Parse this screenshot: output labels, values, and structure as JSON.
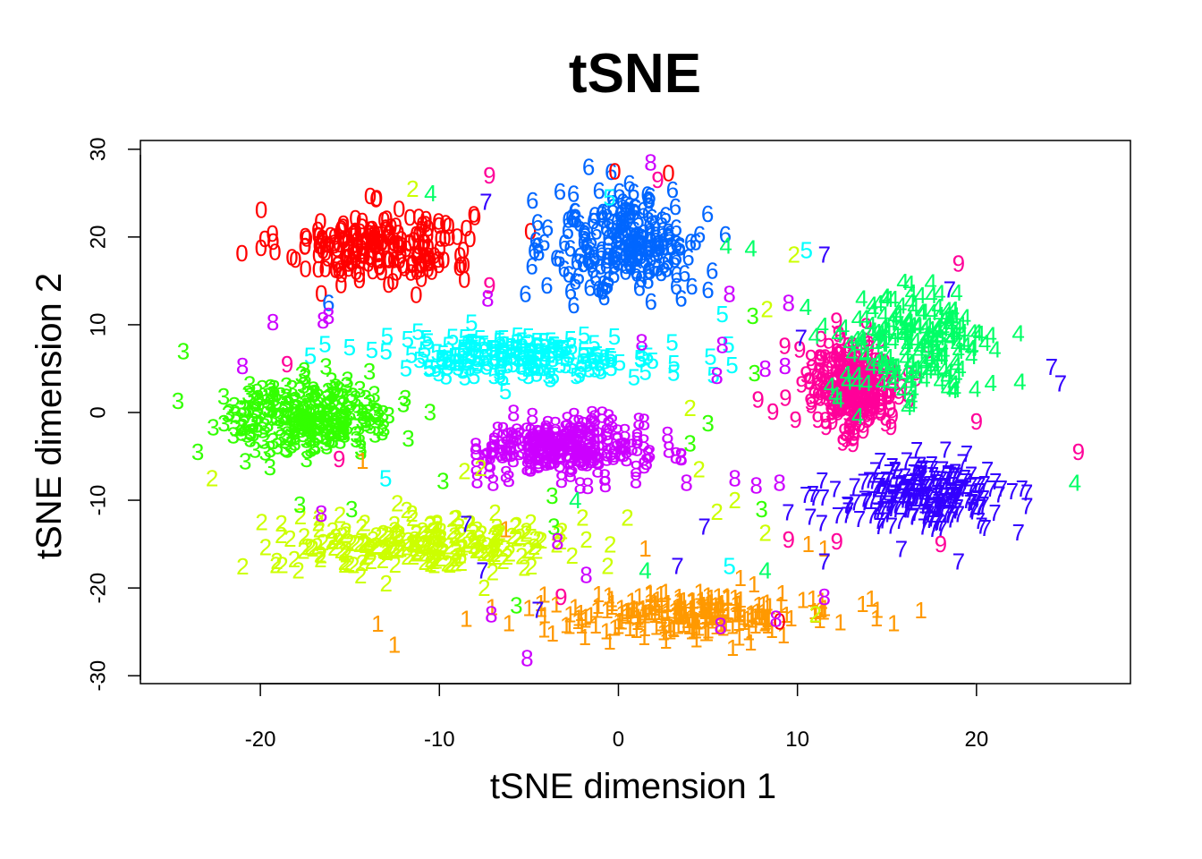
{
  "chart_data": {
    "type": "scatter",
    "title": "tSNE",
    "xlabel": "tSNE dimension 1",
    "ylabel": "tSNE dimension 2",
    "xlim": [
      -26.7,
      28.6
    ],
    "ylim": [
      -30.9,
      31.0
    ],
    "xticks": [
      -20,
      -10,
      0,
      10,
      20
    ],
    "yticks": [
      -30,
      -20,
      -10,
      0,
      10,
      20,
      30
    ],
    "grid": false,
    "legend": "none",
    "colors": {
      "0": "#ff0000",
      "1": "#ff9900",
      "2": "#ccff00",
      "3": "#33ff00",
      "4": "#00ff66",
      "5": "#00ffff",
      "6": "#0066ff",
      "7": "#3300ff",
      "8": "#cc00ff",
      "9": "#ff0099"
    },
    "clusters": [
      {
        "label": "0",
        "center": [
          -13.5,
          19.0
        ],
        "spread": [
          4.3,
          3.4
        ],
        "n": 220
      },
      {
        "label": "6",
        "center": [
          0.6,
          19.3
        ],
        "spread": [
          3.4,
          5.0
        ],
        "n": 220
      },
      {
        "label": "5",
        "center": [
          -5.5,
          6.5
        ],
        "spread": [
          6.5,
          2.0
        ],
        "n": 200
      },
      {
        "label": "3",
        "center": [
          -17.2,
          -0.5
        ],
        "spread": [
          3.8,
          3.3
        ],
        "n": 260
      },
      {
        "label": "8",
        "center": [
          -3.0,
          -4.0
        ],
        "spread": [
          3.6,
          2.6
        ],
        "n": 220
      },
      {
        "label": "2",
        "center": [
          -11.0,
          -15.0
        ],
        "spread": [
          6.5,
          2.4
        ],
        "n": 230
      },
      {
        "label": "1",
        "center": [
          4.0,
          -23.0
        ],
        "spread": [
          6.8,
          2.0
        ],
        "n": 230
      },
      {
        "label": "9",
        "center": [
          13.0,
          3.0
        ],
        "spread": [
          2.2,
          4.7
        ],
        "n": 240
      },
      {
        "label": "4",
        "center": [
          16.5,
          7.5
        ],
        "spread": [
          3.6,
          5.5
        ],
        "n": 200
      },
      {
        "label": "7",
        "center": [
          17.0,
          -9.5
        ],
        "spread": [
          4.0,
          3.0
        ],
        "n": 240
      }
    ],
    "extra_points": [
      {
        "label": "9",
        "x": -7.2,
        "y": 27.0
      },
      {
        "label": "7",
        "x": -7.4,
        "y": 24.0
      },
      {
        "label": "2",
        "x": -11.5,
        "y": 25.5
      },
      {
        "label": "4",
        "x": -10.5,
        "y": 25.0
      },
      {
        "label": "0",
        "x": -0.2,
        "y": 27.5
      },
      {
        "label": "8",
        "x": 1.8,
        "y": 28.5
      },
      {
        "label": "9",
        "x": 2.2,
        "y": 26.5
      },
      {
        "label": "0",
        "x": 2.8,
        "y": 27.3
      },
      {
        "label": "5",
        "x": -0.5,
        "y": 24.5
      },
      {
        "label": "6",
        "x": -2.8,
        "y": 22.0
      },
      {
        "label": "6",
        "x": -4.5,
        "y": 19.0
      },
      {
        "label": "6",
        "x": -4.0,
        "y": 14.5
      },
      {
        "label": "6",
        "x": -5.2,
        "y": 13.5
      },
      {
        "label": "6",
        "x": -16.2,
        "y": 12.5
      },
      {
        "label": "8",
        "x": -16.2,
        "y": 11.0
      },
      {
        "label": "9",
        "x": -7.2,
        "y": 14.5
      },
      {
        "label": "8",
        "x": -7.3,
        "y": 13.0
      },
      {
        "label": "4",
        "x": 6.0,
        "y": 19.0
      },
      {
        "label": "4",
        "x": 7.4,
        "y": 18.7
      },
      {
        "label": "5",
        "x": 5.8,
        "y": 11.2
      },
      {
        "label": "8",
        "x": 6.2,
        "y": 13.5
      },
      {
        "label": "3",
        "x": 7.5,
        "y": 11.0
      },
      {
        "label": "2",
        "x": 8.3,
        "y": 11.8
      },
      {
        "label": "8",
        "x": 9.5,
        "y": 12.5
      },
      {
        "label": "6",
        "x": 3.5,
        "y": 13.0
      },
      {
        "label": "8",
        "x": 5.8,
        "y": 7.7
      },
      {
        "label": "8",
        "x": 1.3,
        "y": 8.0
      },
      {
        "label": "5",
        "x": 3.0,
        "y": 8.0
      },
      {
        "label": "5",
        "x": 5.3,
        "y": 4.3
      },
      {
        "label": "8",
        "x": 5.5,
        "y": 4.2
      },
      {
        "label": "3",
        "x": 7.6,
        "y": 4.5
      },
      {
        "label": "8",
        "x": 8.2,
        "y": 5.0
      },
      {
        "label": "3",
        "x": 5.0,
        "y": -1.2
      },
      {
        "label": "2",
        "x": 4.0,
        "y": 0.5
      },
      {
        "label": "9",
        "x": 7.8,
        "y": 1.5
      },
      {
        "label": "3",
        "x": -24.3,
        "y": 7.0
      },
      {
        "label": "3",
        "x": -23.5,
        "y": -4.5
      },
      {
        "label": "3",
        "x": -24.6,
        "y": 1.3
      },
      {
        "label": "8",
        "x": -21.0,
        "y": 5.3
      },
      {
        "label": "9",
        "x": -18.5,
        "y": 5.5
      },
      {
        "label": "8",
        "x": -19.3,
        "y": 10.3
      },
      {
        "label": "8",
        "x": -16.5,
        "y": 10.5
      },
      {
        "label": "9",
        "x": -15.6,
        "y": -5.3
      },
      {
        "label": "1",
        "x": -14.3,
        "y": -5.5
      },
      {
        "label": "5",
        "x": -13.0,
        "y": -7.5
      },
      {
        "label": "2",
        "x": -22.7,
        "y": -7.5
      },
      {
        "label": "3",
        "x": -17.8,
        "y": -10.5
      },
      {
        "label": "8",
        "x": -16.6,
        "y": -11.5
      },
      {
        "label": "3",
        "x": -14.9,
        "y": -11.0
      },
      {
        "label": "3",
        "x": -9.8,
        "y": -7.8
      },
      {
        "label": "7",
        "x": -8.5,
        "y": -12.7
      },
      {
        "label": "1",
        "x": -6.3,
        "y": -13.3
      },
      {
        "label": "7",
        "x": -7.6,
        "y": -18.0
      },
      {
        "label": "2",
        "x": -7.5,
        "y": -20.0
      },
      {
        "label": "2",
        "x": -8.6,
        "y": -6.7
      },
      {
        "label": "2",
        "x": -7.7,
        "y": -6.3
      },
      {
        "label": "8",
        "x": -7.0,
        "y": -8.0
      },
      {
        "label": "4",
        "x": -2.4,
        "y": -10.0
      },
      {
        "label": "3",
        "x": -3.7,
        "y": -9.5
      },
      {
        "label": "2",
        "x": -2.0,
        "y": -12.0
      },
      {
        "label": "3",
        "x": -3.6,
        "y": -13.0
      },
      {
        "label": "8",
        "x": -3.4,
        "y": -14.7
      },
      {
        "label": "2",
        "x": -1.8,
        "y": -14.5
      },
      {
        "label": "2",
        "x": 0.5,
        "y": -12.0
      },
      {
        "label": "8",
        "x": 3.8,
        "y": -8.0
      },
      {
        "label": "8",
        "x": 3.5,
        "y": -5.0
      },
      {
        "label": "3",
        "x": 4.0,
        "y": -3.5
      },
      {
        "label": "2",
        "x": 4.5,
        "y": -6.5
      },
      {
        "label": "8",
        "x": 6.5,
        "y": -7.5
      },
      {
        "label": "2",
        "x": 5.5,
        "y": -11.3
      },
      {
        "label": "7",
        "x": 4.8,
        "y": -13.0
      },
      {
        "label": "2",
        "x": 6.5,
        "y": -10.0
      },
      {
        "label": "8",
        "x": 7.7,
        "y": -8.3
      },
      {
        "label": "3",
        "x": 8.0,
        "y": -11.0
      },
      {
        "label": "2",
        "x": 8.2,
        "y": -13.7
      },
      {
        "label": "8",
        "x": 9.0,
        "y": -8.0
      },
      {
        "label": "9",
        "x": 9.5,
        "y": -14.5
      },
      {
        "label": "1",
        "x": 10.6,
        "y": -15.0
      },
      {
        "label": "9",
        "x": 12.2,
        "y": -14.7
      },
      {
        "label": "1",
        "x": 11.5,
        "y": -15.5
      },
      {
        "label": "7",
        "x": 11.5,
        "y": -17.0
      },
      {
        "label": "5",
        "x": 6.2,
        "y": -17.5
      },
      {
        "label": "4",
        "x": 8.2,
        "y": -18.0
      },
      {
        "label": "8",
        "x": -1.8,
        "y": -18.5
      },
      {
        "label": "2",
        "x": -0.6,
        "y": -17.5
      },
      {
        "label": "4",
        "x": 1.5,
        "y": -18.0
      },
      {
        "label": "7",
        "x": 3.3,
        "y": -17.5
      },
      {
        "label": "1",
        "x": 1.5,
        "y": -15.5
      },
      {
        "label": "9",
        "x": -3.2,
        "y": -21.0
      },
      {
        "label": "7",
        "x": -4.5,
        "y": -22.5
      },
      {
        "label": "3",
        "x": -5.7,
        "y": -22.0
      },
      {
        "label": "8",
        "x": -7.1,
        "y": -23.0
      },
      {
        "label": "1",
        "x": -8.5,
        "y": -23.5
      },
      {
        "label": "8",
        "x": -5.1,
        "y": -28.0
      },
      {
        "label": "8",
        "x": 5.7,
        "y": -24.3
      },
      {
        "label": "0",
        "x": 9.0,
        "y": -23.8
      },
      {
        "label": "8",
        "x": 8.8,
        "y": -23.5
      },
      {
        "label": "8",
        "x": 11.5,
        "y": -21.0
      },
      {
        "label": "2",
        "x": 11.0,
        "y": -23.0
      },
      {
        "label": "7",
        "x": 19.0,
        "y": -17.0
      },
      {
        "label": "9",
        "x": 18.0,
        "y": -15.0
      },
      {
        "label": "9",
        "x": 25.7,
        "y": -4.5
      },
      {
        "label": "4",
        "x": 25.5,
        "y": -8.0
      },
      {
        "label": "7",
        "x": 24.2,
        "y": 5.2
      },
      {
        "label": "7",
        "x": 24.7,
        "y": 3.3
      },
      {
        "label": "9",
        "x": 20.0,
        "y": -1.0
      },
      {
        "label": "9",
        "x": 19.0,
        "y": 17.0
      },
      {
        "label": "7",
        "x": 18.5,
        "y": 14.0
      },
      {
        "label": "2",
        "x": 9.8,
        "y": 18.0
      },
      {
        "label": "5",
        "x": 10.5,
        "y": 18.5
      },
      {
        "label": "7",
        "x": 11.5,
        "y": 18.0
      },
      {
        "label": "7",
        "x": 10.2,
        "y": 8.5
      },
      {
        "label": "8",
        "x": 9.3,
        "y": 5.3
      }
    ]
  }
}
